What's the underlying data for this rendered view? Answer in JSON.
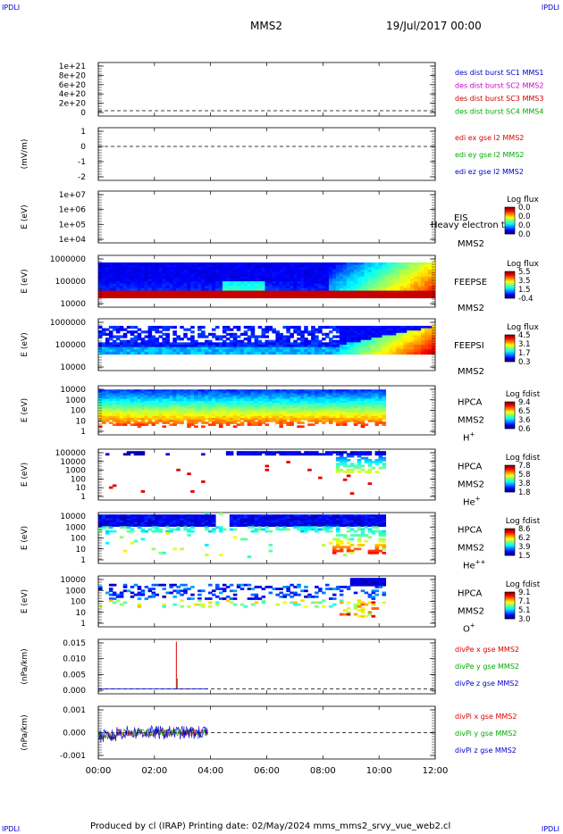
{
  "corner_label": "IPDLI",
  "header": {
    "title": "MMS2",
    "date": "19/Jul/2017 00:00"
  },
  "footer": {
    "text": "Produced by cl (IRAP)   Printing date: 02/May/2024   mms_mms2_srvy_vue_web2.cl"
  },
  "colors": {
    "sc1": "#0000cc",
    "sc2": "#cc00cc",
    "sc3": "#cc0000",
    "sc4": "#00aa00",
    "red": "#dd0000",
    "green": "#00aa00",
    "blue": "#0000cc"
  },
  "chart_data": {
    "type": "heatmap",
    "x_ticks": [
      "00:00",
      "02:00",
      "04:00",
      "06:00",
      "08:00",
      "10:00",
      "12:00"
    ],
    "xlim_hours": [
      0,
      12
    ],
    "panels": [
      {
        "id": "des-dist",
        "type": "line",
        "ylabel": "",
        "y_ticks": [
          "1e+21",
          "8e+20",
          "6e+20",
          "4e+20",
          "2e+20",
          "0"
        ],
        "legend": [
          "des dist burst SC1 MMS1",
          "des dist burst SC2 MMS2",
          "des dist burst SC3 MMS3",
          "des dist burst SC4 MMS4"
        ],
        "zero_line": true
      },
      {
        "id": "edi",
        "type": "line",
        "ylabel": "(mV/m)",
        "y_ticks": [
          "1",
          "0",
          "-1",
          "-2"
        ],
        "legend": [
          "edi ex gse l2 MMS2",
          "edi ey gse l2 MMS2",
          "edi ez gse l2 MMS2"
        ],
        "zero_line": true
      },
      {
        "id": "eis",
        "type": "heatmap",
        "ylabel": "E (eV)",
        "y_ticks": [
          "1e+07",
          "1e+06",
          "1e+05",
          "1e+04"
        ],
        "label1": "EIS",
        "label2": "MMS2",
        "overlay_text": "Heavy electron tof",
        "cbar_title": "Log flux",
        "cbar_ticks": [
          "0.0",
          "0.0",
          "0.0",
          "0.0"
        ]
      },
      {
        "id": "feepse",
        "type": "heatmap",
        "ylabel": "E (eV)",
        "y_ticks": [
          "1000000",
          "100000",
          "10000"
        ],
        "label1": "FEEPSE",
        "label2": "MMS2",
        "cbar_title": "Log flux",
        "cbar_ticks": [
          "5.5",
          "3.5",
          "1.5",
          "-0.4"
        ]
      },
      {
        "id": "feepsi",
        "type": "heatmap",
        "ylabel": "E (eV)",
        "y_ticks": [
          "1000000",
          "100000",
          "10000"
        ],
        "label1": "FEEPSI",
        "label2": "MMS2",
        "cbar_title": "Log flux",
        "cbar_ticks": [
          "4.5",
          "3.1",
          "1.7",
          "0.3"
        ]
      },
      {
        "id": "hpca-h",
        "type": "heatmap",
        "ylabel": "E (eV)",
        "y_ticks": [
          "10000",
          "1000",
          "100",
          "10",
          "1"
        ],
        "label1": "HPCA",
        "label2": "MMS2",
        "species": "H",
        "charge": "+",
        "cbar_title": "Log fdist",
        "cbar_ticks": [
          "9.4",
          "6.5",
          "3.6",
          "0.6"
        ]
      },
      {
        "id": "hpca-he",
        "type": "heatmap",
        "ylabel": "E (eV)",
        "y_ticks": [
          "100000",
          "10000",
          "1000",
          "100",
          "10",
          "1"
        ],
        "label1": "HPCA",
        "label2": "MMS2",
        "species": "He",
        "charge": "+",
        "cbar_title": "Log fdist",
        "cbar_ticks": [
          "7.8",
          "5.8",
          "3.8",
          "1.8"
        ]
      },
      {
        "id": "hpca-hepp",
        "type": "heatmap",
        "ylabel": "E (eV)",
        "y_ticks": [
          "10000",
          "1000",
          "100",
          "10",
          "1"
        ],
        "label1": "HPCA",
        "label2": "MMS2",
        "species": "He",
        "charge": "++",
        "cbar_title": "Log fdist",
        "cbar_ticks": [
          "8.6",
          "6.2",
          "3.9",
          "1.5"
        ]
      },
      {
        "id": "hpca-o",
        "type": "heatmap",
        "ylabel": "E (eV)",
        "y_ticks": [
          "10000",
          "1000",
          "100",
          "10",
          "1"
        ],
        "label1": "HPCA",
        "label2": "MMS2",
        "species": "O",
        "charge": "+",
        "cbar_title": "Log fdist",
        "cbar_ticks": [
          "9.1",
          "7.1",
          "5.1",
          "3.0"
        ]
      },
      {
        "id": "divpe",
        "type": "line",
        "ylabel": "(nPa/km)",
        "y_ticks": [
          "0.015",
          "0.010",
          "0.005",
          "0.000"
        ],
        "legend": [
          "divPe x gse MMS2",
          "divPe y gse MMS2",
          "divPe z gse MMS2"
        ],
        "zero_line": true,
        "spike_time_h": 2.78,
        "spike_x_max": 0.018,
        "spike_y_max": 0.004
      },
      {
        "id": "divpi",
        "type": "line",
        "ylabel": "(nPa/km)",
        "y_ticks": [
          "0.001",
          "0.000",
          "-0.001"
        ],
        "legend": [
          "divPi x gse MMS2",
          "divPi y gse MMS2",
          "divPi z gse MMS2"
        ],
        "zero_line": true,
        "data_end_h": 3.9,
        "noise_amplitude": 0.0004
      }
    ]
  }
}
